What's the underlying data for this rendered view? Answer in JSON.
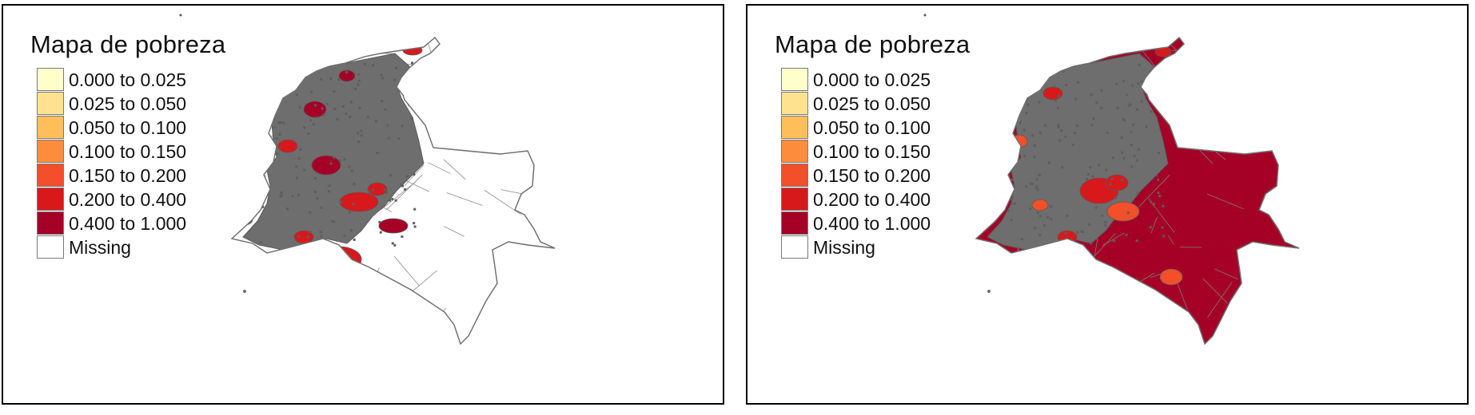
{
  "legend_classes": [
    {
      "label": "0.000 to 0.025",
      "color": "#ffffcc"
    },
    {
      "label": "0.025 to 0.050",
      "color": "#ffe28f"
    },
    {
      "label": "0.050 to 0.100",
      "color": "#febf5a"
    },
    {
      "label": "0.100 to 0.150",
      "color": "#fd8d3c"
    },
    {
      "label": "0.150 to 0.200",
      "color": "#f24f2a"
    },
    {
      "label": "0.200 to 0.400",
      "color": "#d7191c"
    },
    {
      "label": "0.400 to 1.000",
      "color": "#a50026"
    },
    {
      "label": "Missing",
      "color": "#ffffff"
    }
  ],
  "panels": [
    {
      "legend_title": "Mapa de pobreza",
      "style": "partial",
      "fill_color": "#ffffff",
      "dense_color": "#6e6e6e",
      "region_colors": [
        "#d7191c",
        "#a50026"
      ]
    },
    {
      "legend_title": "Mapa de pobreza",
      "style": "filled",
      "fill_color": "#a50026",
      "dense_color": "#6e6e6e",
      "region_colors": [
        "#d7191c",
        "#f24f2a"
      ]
    }
  ]
}
